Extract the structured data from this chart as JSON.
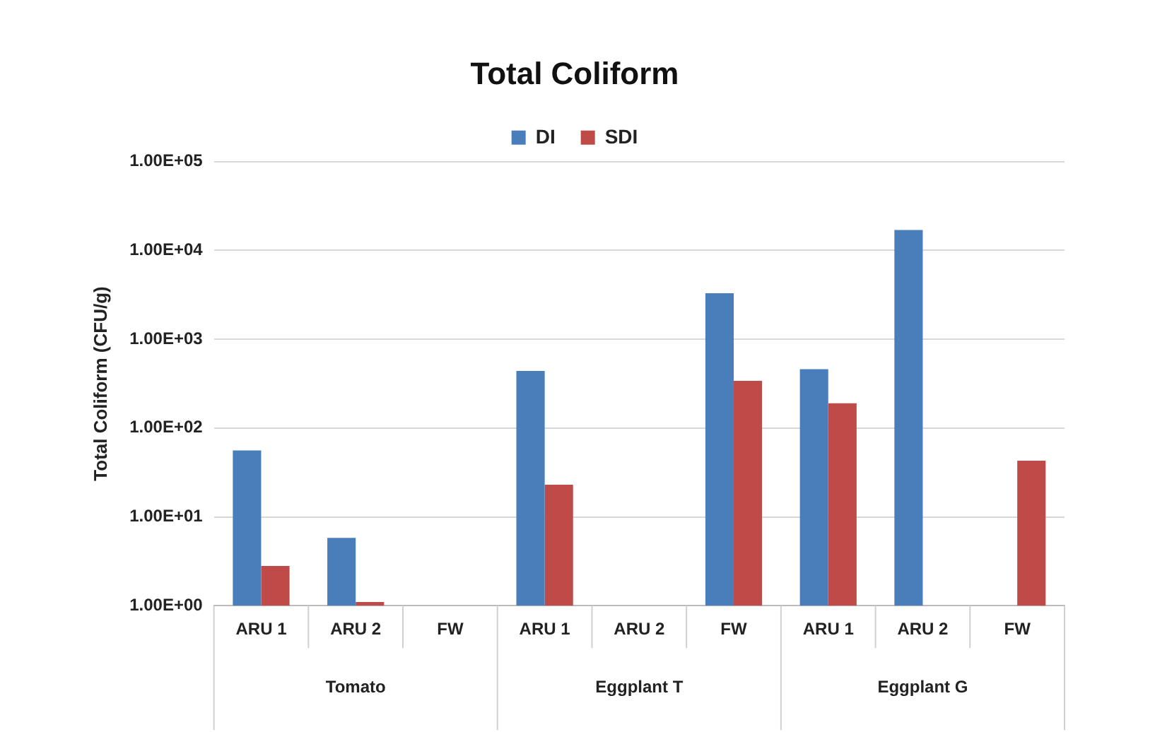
{
  "chart_data": {
    "type": "bar",
    "title": "Total Coliform",
    "ylabel": "Total Coliform (CFU/g)",
    "categories": [
      "ARU 1",
      "ARU 2",
      "FW",
      "ARU 1",
      "ARU 2",
      "FW",
      "ARU 1",
      "ARU 2",
      "FW"
    ],
    "annotations": [
      "Tomato",
      "Eggplant T",
      "Eggplant G"
    ],
    "series": [
      {
        "name": "DI",
        "color": "#4a7ebb",
        "values": [
          56,
          5.8,
          null,
          440,
          null,
          3300,
          460,
          17000,
          null
        ]
      },
      {
        "name": "SDI",
        "color": "#be4b48",
        "values": [
          2.8,
          1.1,
          null,
          23,
          null,
          340,
          190,
          null,
          43
        ]
      }
    ],
    "log": "y",
    "ylim": [
      1,
      100000
    ],
    "yticks": [
      {
        "value": 1,
        "label": "1.00E+00"
      },
      {
        "value": 10,
        "label": "1.00E+01"
      },
      {
        "value": 100,
        "label": "1.00E+02"
      },
      {
        "value": 1000,
        "label": "1.00E+03"
      },
      {
        "value": 10000,
        "label": "1.00E+04"
      },
      {
        "value": 100000,
        "label": "1.00E+05"
      }
    ],
    "grid": "y",
    "legend": "top"
  }
}
